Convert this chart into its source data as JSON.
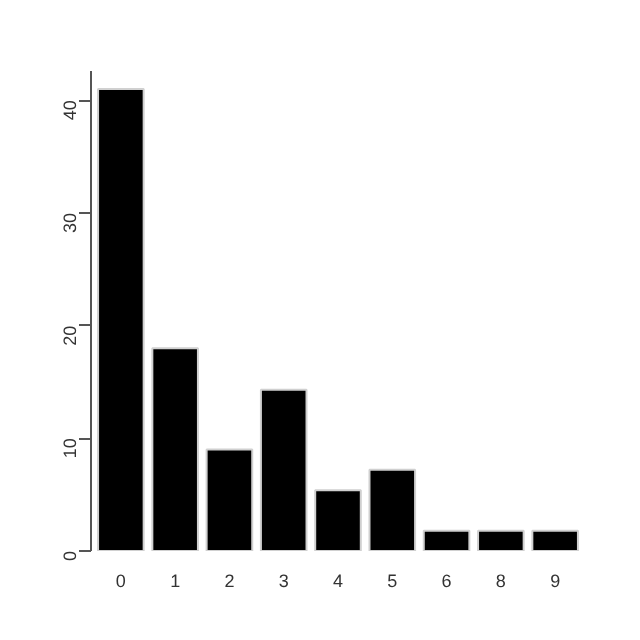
{
  "chart_data": {
    "type": "bar",
    "categories": [
      "0",
      "1",
      "2",
      "3",
      "4",
      "5",
      "6",
      "8",
      "9"
    ],
    "values": [
      41,
      18,
      9,
      14.3,
      5.4,
      7.2,
      1.8,
      1.8,
      1.8
    ],
    "color": "#000000",
    "ylim": [
      0,
      42.6
    ],
    "yticks": [
      0,
      10,
      20,
      30,
      40
    ],
    "grid": false
  }
}
